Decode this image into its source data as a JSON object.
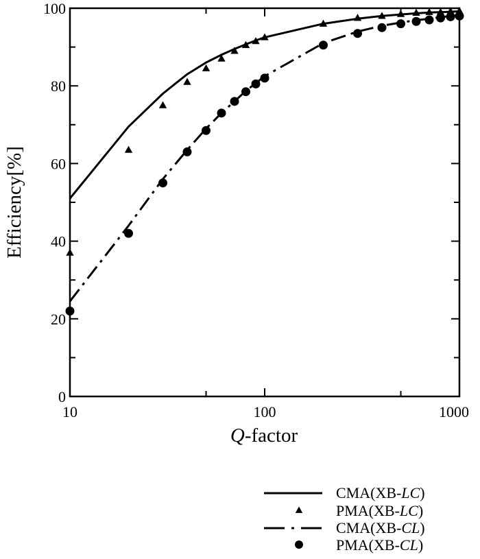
{
  "chart_data": {
    "type": "line",
    "xlabel": {
      "italic": "Q",
      "rest": "-factor"
    },
    "ylabel": "Efficiency[%]",
    "xscale": "log",
    "xlim": [
      10,
      1000
    ],
    "ylim": [
      0,
      100
    ],
    "grid": false,
    "legend_placement": "bottom-right, below plot",
    "x_ticks": [
      "10",
      "100",
      "1000"
    ],
    "y_ticks": [
      "0",
      "20",
      "40",
      "60",
      "80",
      "100"
    ],
    "series": [
      {
        "name": {
          "prefix": "CMA(XB-",
          "italic": "LC",
          "suffix": ")"
        },
        "style": "solid-line",
        "x": [
          10,
          20,
          30,
          40,
          50,
          60,
          70,
          80,
          90,
          100,
          200,
          300,
          400,
          500,
          600,
          700,
          800,
          900,
          1000
        ],
        "y": [
          51,
          69.5,
          78,
          83,
          86,
          88,
          89.5,
          90.7,
          91.7,
          92.5,
          96,
          97.3,
          98,
          98.4,
          98.7,
          98.9,
          99,
          99.1,
          99.2
        ]
      },
      {
        "name": {
          "prefix": "PMA(XB-",
          "italic": "LC",
          "suffix": ")"
        },
        "style": "triangle-markers",
        "x": [
          10,
          20,
          30,
          40,
          50,
          60,
          70,
          80,
          90,
          100,
          200,
          300,
          400,
          500,
          600,
          700,
          800,
          900,
          1000
        ],
        "y": [
          37,
          63.5,
          75,
          81,
          84.5,
          87,
          89,
          90.5,
          91.5,
          92.5,
          96,
          97.5,
          98,
          98.5,
          98.8,
          99,
          99,
          99.2,
          99.3
        ]
      },
      {
        "name": {
          "prefix": "CMA(XB-",
          "italic": "CL",
          "suffix": ")"
        },
        "style": "dash-dot-line",
        "x": [
          10,
          20,
          30,
          40,
          50,
          60,
          70,
          80,
          90,
          100,
          200,
          300,
          400,
          500,
          600,
          700,
          800,
          900,
          1000
        ],
        "y": [
          24.5,
          44,
          56,
          63.5,
          69,
          73,
          76,
          78.7,
          80.7,
          82.5,
          91,
          94,
          95.5,
          96.3,
          96.9,
          97.3,
          97.7,
          98,
          98.2
        ]
      },
      {
        "name": {
          "prefix": "PMA(XB-",
          "italic": "CL",
          "suffix": ")"
        },
        "style": "circle-markers",
        "x": [
          10,
          20,
          30,
          40,
          50,
          60,
          70,
          80,
          90,
          100,
          200,
          300,
          400,
          500,
          600,
          700,
          800,
          900,
          1000
        ],
        "y": [
          22,
          42,
          55,
          63,
          68.5,
          73,
          76,
          78.5,
          80.5,
          82,
          90.5,
          93.5,
          95,
          96,
          96.6,
          97,
          97.5,
          97.8,
          98
        ]
      }
    ],
    "colors": {
      "line": "#000000",
      "background": "#ffffff"
    }
  }
}
